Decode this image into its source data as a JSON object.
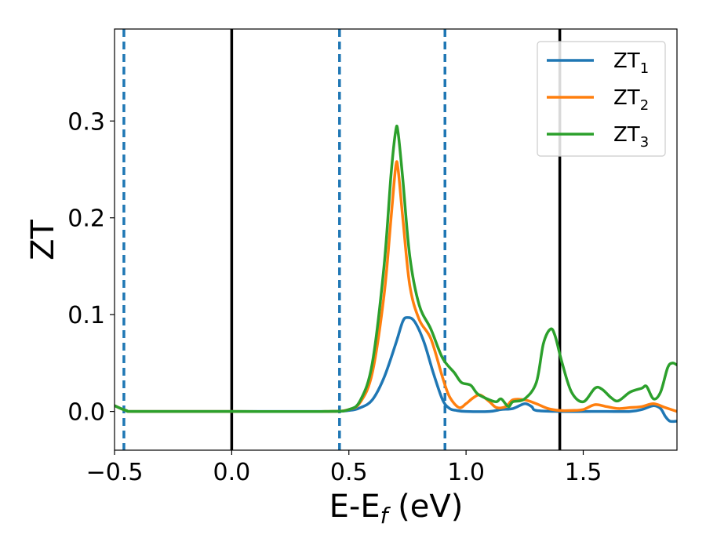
{
  "chart_data": {
    "type": "line",
    "xlabel": "E-E",
    "xlabel_sub": "f",
    "xlabel_unit": " (eV)",
    "ylabel": "ZT",
    "xlim": [
      -0.5,
      1.9
    ],
    "ylim": [
      -0.04,
      0.395
    ],
    "xticks": [
      -0.5,
      0.0,
      0.5,
      1.0,
      1.5
    ],
    "xtick_labels": [
      "−0.5",
      "0.0",
      "0.5",
      "1.0",
      "1.5"
    ],
    "yticks": [
      0.0,
      0.1,
      0.2,
      0.3
    ],
    "ytick_labels": [
      "0.0",
      "0.1",
      "0.2",
      "0.3"
    ],
    "grid": false,
    "legend_position": "top-right",
    "vlines_solid": [
      0.0,
      1.4
    ],
    "vlines_dashed": [
      -0.46,
      0.46,
      0.91
    ],
    "series": [
      {
        "name": "ZT",
        "name_sub": "1",
        "color": "#1f77b4",
        "points": [
          [
            -0.5,
            0.006
          ],
          [
            -0.45,
            0.001
          ],
          [
            -0.4,
            0.0
          ],
          [
            0.0,
            0.0
          ],
          [
            0.4,
            0.0
          ],
          [
            0.5,
            0.001
          ],
          [
            0.55,
            0.004
          ],
          [
            0.6,
            0.012
          ],
          [
            0.65,
            0.035
          ],
          [
            0.7,
            0.07
          ],
          [
            0.73,
            0.093
          ],
          [
            0.75,
            0.097
          ],
          [
            0.78,
            0.093
          ],
          [
            0.82,
            0.072
          ],
          [
            0.86,
            0.04
          ],
          [
            0.9,
            0.012
          ],
          [
            0.93,
            0.003
          ],
          [
            0.96,
            0.001
          ],
          [
            1.0,
            0.0
          ],
          [
            1.1,
            0.0
          ],
          [
            1.15,
            0.002
          ],
          [
            1.2,
            0.003
          ],
          [
            1.25,
            0.008
          ],
          [
            1.28,
            0.005
          ],
          [
            1.3,
            0.001
          ],
          [
            1.4,
            0.0
          ],
          [
            1.6,
            0.0
          ],
          [
            1.7,
            0.0
          ],
          [
            1.75,
            0.002
          ],
          [
            1.8,
            0.006
          ],
          [
            1.83,
            0.003
          ],
          [
            1.85,
            -0.005
          ],
          [
            1.87,
            -0.01
          ],
          [
            1.9,
            -0.01
          ]
        ]
      },
      {
        "name": "ZT",
        "name_sub": "2",
        "color": "#ff7f0e",
        "points": [
          [
            -0.5,
            0.006
          ],
          [
            -0.45,
            0.001
          ],
          [
            -0.4,
            0.0
          ],
          [
            0.0,
            0.0
          ],
          [
            0.4,
            0.0
          ],
          [
            0.5,
            0.002
          ],
          [
            0.55,
            0.01
          ],
          [
            0.6,
            0.04
          ],
          [
            0.65,
            0.12
          ],
          [
            0.68,
            0.2
          ],
          [
            0.7,
            0.253
          ],
          [
            0.71,
            0.25
          ],
          [
            0.73,
            0.2
          ],
          [
            0.76,
            0.13
          ],
          [
            0.8,
            0.095
          ],
          [
            0.85,
            0.075
          ],
          [
            0.9,
            0.035
          ],
          [
            0.93,
            0.015
          ],
          [
            0.97,
            0.004
          ],
          [
            1.0,
            0.008
          ],
          [
            1.03,
            0.014
          ],
          [
            1.06,
            0.017
          ],
          [
            1.1,
            0.01
          ],
          [
            1.13,
            0.004
          ],
          [
            1.17,
            0.005
          ],
          [
            1.2,
            0.012
          ],
          [
            1.25,
            0.012
          ],
          [
            1.3,
            0.008
          ],
          [
            1.35,
            0.003
          ],
          [
            1.4,
            0.001
          ],
          [
            1.45,
            0.001
          ],
          [
            1.5,
            0.002
          ],
          [
            1.55,
            0.007
          ],
          [
            1.6,
            0.005
          ],
          [
            1.65,
            0.003
          ],
          [
            1.7,
            0.004
          ],
          [
            1.75,
            0.005
          ],
          [
            1.8,
            0.008
          ],
          [
            1.85,
            0.004
          ],
          [
            1.9,
            0.0
          ]
        ]
      },
      {
        "name": "ZT",
        "name_sub": "3",
        "color": "#2ca02c",
        "points": [
          [
            -0.5,
            0.006
          ],
          [
            -0.45,
            0.001
          ],
          [
            -0.4,
            0.0
          ],
          [
            0.0,
            0.0
          ],
          [
            0.4,
            0.0
          ],
          [
            0.5,
            0.002
          ],
          [
            0.55,
            0.012
          ],
          [
            0.6,
            0.05
          ],
          [
            0.65,
            0.15
          ],
          [
            0.68,
            0.245
          ],
          [
            0.7,
            0.29
          ],
          [
            0.71,
            0.288
          ],
          [
            0.73,
            0.24
          ],
          [
            0.76,
            0.16
          ],
          [
            0.8,
            0.11
          ],
          [
            0.85,
            0.085
          ],
          [
            0.9,
            0.055
          ],
          [
            0.95,
            0.04
          ],
          [
            0.98,
            0.03
          ],
          [
            1.02,
            0.027
          ],
          [
            1.05,
            0.018
          ],
          [
            1.1,
            0.012
          ],
          [
            1.13,
            0.01
          ],
          [
            1.15,
            0.013
          ],
          [
            1.18,
            0.005
          ],
          [
            1.2,
            0.01
          ],
          [
            1.25,
            0.013
          ],
          [
            1.3,
            0.03
          ],
          [
            1.33,
            0.07
          ],
          [
            1.36,
            0.085
          ],
          [
            1.38,
            0.078
          ],
          [
            1.41,
            0.05
          ],
          [
            1.45,
            0.02
          ],
          [
            1.5,
            0.01
          ],
          [
            1.55,
            0.024
          ],
          [
            1.58,
            0.023
          ],
          [
            1.62,
            0.014
          ],
          [
            1.65,
            0.011
          ],
          [
            1.7,
            0.02
          ],
          [
            1.75,
            0.024
          ],
          [
            1.77,
            0.026
          ],
          [
            1.8,
            0.013
          ],
          [
            1.83,
            0.02
          ],
          [
            1.86,
            0.045
          ],
          [
            1.88,
            0.05
          ],
          [
            1.9,
            0.048
          ]
        ]
      }
    ]
  }
}
